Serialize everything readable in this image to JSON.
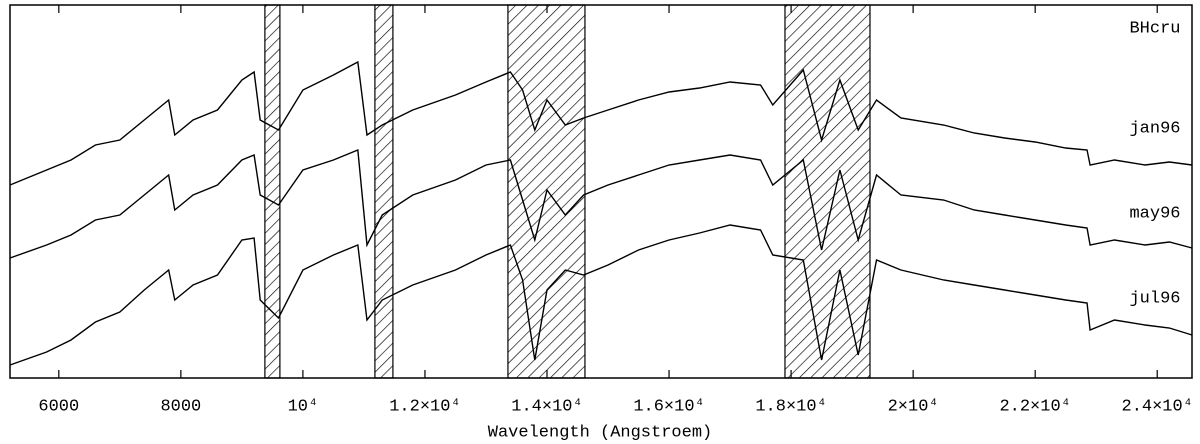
{
  "chart_data": {
    "type": "line",
    "title": "BHcru",
    "xlabel": "Wavelength (Angstroem)",
    "xlim": [
      5200,
      24570
    ],
    "ylim": [
      0,
      373
    ],
    "xticks": [
      6000,
      8000,
      {
        "value": 10000,
        "label": "10⁴"
      },
      {
        "value": 12000,
        "label": "1.2×10⁴"
      },
      {
        "value": 14000,
        "label": "1.4×10⁴"
      },
      {
        "value": 16000,
        "label": "1.6×10⁴"
      },
      {
        "value": 18000,
        "label": "1.8×10⁴"
      },
      {
        "value": 20000,
        "label": "2×10⁴"
      },
      {
        "value": 22000,
        "label": "2.2×10⁴"
      },
      {
        "value": 24000,
        "label": "2.4×10⁴"
      }
    ],
    "shaded_regions": [
      [
        9377,
        9623
      ],
      [
        11180,
        11475
      ],
      [
        13360,
        14622
      ],
      [
        17900,
        19293
      ]
    ],
    "x": [
      5200,
      5800,
      6200,
      6600,
      7000,
      7400,
      7800,
      7900,
      8200,
      8600,
      9000,
      9200,
      9300,
      9600,
      10000,
      10500,
      10900,
      11050,
      11300,
      11800,
      12500,
      13000,
      13400,
      13600,
      13800,
      14000,
      14300,
      14600,
      15000,
      15500,
      16000,
      16500,
      17000,
      17500,
      17700,
      18200,
      18500,
      18800,
      19100,
      19400,
      19800,
      20500,
      21000,
      21500,
      22000,
      22500,
      22850,
      22900,
      23300,
      23800,
      24200,
      24570
    ],
    "series": [
      {
        "name": "jan96",
        "color": "#000000",
        "values": [
          193,
          208,
          218,
          233,
          238,
          258,
          278,
          243,
          258,
          268,
          298,
          306,
          258,
          248,
          288,
          303,
          316,
          243,
          253,
          268,
          283,
          296,
          306,
          288,
          248,
          278,
          253,
          260,
          268,
          278,
          286,
          290,
          296,
          293,
          273,
          308,
          238,
          298,
          248,
          278,
          260,
          253,
          245,
          240,
          236,
          230,
          228,
          213,
          218,
          213,
          216,
          213
        ]
      },
      {
        "name": "may96",
        "color": "#000000",
        "values": [
          120,
          133,
          143,
          158,
          163,
          183,
          203,
          168,
          183,
          193,
          218,
          223,
          183,
          173,
          208,
          218,
          228,
          133,
          163,
          183,
          198,
          213,
          218,
          178,
          138,
          188,
          163,
          183,
          193,
          203,
          213,
          218,
          223,
          218,
          193,
          218,
          128,
          208,
          138,
          203,
          183,
          178,
          168,
          163,
          158,
          153,
          150,
          133,
          138,
          133,
          136,
          130
        ]
      },
      {
        "name": "jul96",
        "color": "#000000",
        "values": [
          13,
          26,
          38,
          56,
          66,
          88,
          108,
          78,
          93,
          103,
          138,
          140,
          78,
          60,
          108,
          123,
          133,
          58,
          78,
          93,
          108,
          123,
          133,
          98,
          18,
          88,
          108,
          103,
          113,
          128,
          138,
          145,
          153,
          148,
          123,
          118,
          18,
          108,
          23,
          118,
          108,
          98,
          93,
          88,
          83,
          78,
          75,
          48,
          58,
          53,
          50,
          43
        ]
      }
    ]
  }
}
